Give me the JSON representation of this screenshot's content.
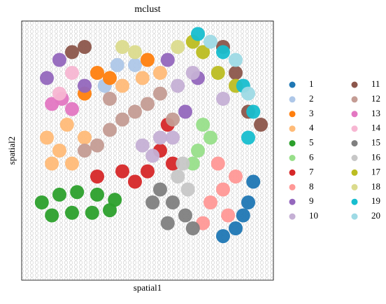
{
  "chart_data": {
    "type": "scatter",
    "title": "mclust",
    "x_label": "spatial1",
    "y_label": "spatial2",
    "xlim": [
      0,
      100
    ],
    "ylim": [
      0,
      100
    ],
    "legend": "right",
    "series": [
      {
        "name": "1",
        "color": "#1f77b4",
        "x": [
          85,
          88,
          90,
          92,
          80
        ],
        "y": [
          20,
          25,
          30,
          38,
          17
        ]
      },
      {
        "name": "2",
        "color": "#aec7e8",
        "x": [
          38,
          45,
          33
        ],
        "y": [
          83,
          83,
          75
        ]
      },
      {
        "name": "3",
        "color": "#ff7f0e",
        "x": [
          25,
          30,
          35,
          50
        ],
        "y": [
          72,
          80,
          78,
          85
        ]
      },
      {
        "name": "4",
        "color": "#ffbb78",
        "x": [
          10,
          15,
          20,
          12,
          25,
          18,
          40,
          48,
          55
        ],
        "y": [
          55,
          50,
          45,
          45,
          55,
          60,
          75,
          78,
          80
        ]
      },
      {
        "name": "5",
        "color": "#2ca02c",
        "x": [
          8,
          15,
          22,
          30,
          37,
          12,
          20,
          28,
          35
        ],
        "y": [
          30,
          33,
          34,
          33,
          31,
          25,
          26,
          26,
          27
        ]
      },
      {
        "name": "6",
        "color": "#98df8a",
        "x": [
          70,
          75,
          72,
          68
        ],
        "y": [
          50,
          55,
          60,
          45
        ]
      },
      {
        "name": "7",
        "color": "#d62728",
        "x": [
          30,
          40,
          50,
          55,
          58,
          60,
          45
        ],
        "y": [
          40,
          42,
          42,
          50,
          60,
          45,
          38
        ]
      },
      {
        "name": "8",
        "color": "#ff9896",
        "x": [
          75,
          80,
          85,
          78,
          72,
          82
        ],
        "y": [
          30,
          35,
          40,
          45,
          22,
          25
        ]
      },
      {
        "name": "9",
        "color": "#9467bd",
        "x": [
          10,
          15,
          65,
          70,
          58,
          25
        ],
        "y": [
          78,
          85,
          65,
          78,
          85,
          75
        ]
      },
      {
        "name": "10",
        "color": "#c5b0d5",
        "x": [
          55,
          52,
          60,
          48,
          62,
          68,
          80
        ],
        "y": [
          55,
          48,
          55,
          52,
          75,
          80,
          70
        ]
      },
      {
        "name": "11",
        "color": "#8c564b",
        "x": [
          20,
          25,
          80,
          85,
          95,
          90
        ],
        "y": [
          88,
          90,
          90,
          80,
          60,
          65
        ]
      },
      {
        "name": "12",
        "color": "#c49c94",
        "x": [
          25,
          30,
          35,
          40,
          45,
          50,
          55,
          35,
          60
        ],
        "y": [
          50,
          52,
          58,
          62,
          65,
          68,
          72,
          70,
          62
        ]
      },
      {
        "name": "13",
        "color": "#e377c2",
        "x": [
          12,
          16,
          20
        ],
        "y": [
          68,
          70,
          66
        ]
      },
      {
        "name": "14",
        "color": "#f7b6d2",
        "x": [
          15,
          20
        ],
        "y": [
          72,
          80
        ]
      },
      {
        "name": "15",
        "color": "#7f7f7f",
        "x": [
          52,
          60,
          65,
          68,
          58,
          55
        ],
        "y": [
          30,
          30,
          25,
          20,
          22,
          35
        ]
      },
      {
        "name": "16",
        "color": "#c7c7c7",
        "x": [
          62,
          66,
          64
        ],
        "y": [
          40,
          35,
          45
        ]
      },
      {
        "name": "17",
        "color": "#bcbd22",
        "x": [
          68,
          72,
          78,
          85
        ],
        "y": [
          92,
          88,
          80,
          75
        ]
      },
      {
        "name": "18",
        "color": "#dbdb8d",
        "x": [
          40,
          45,
          62
        ],
        "y": [
          90,
          88,
          90
        ]
      },
      {
        "name": "19",
        "color": "#17becf",
        "x": [
          70,
          80,
          88,
          92,
          90
        ],
        "y": [
          95,
          88,
          75,
          65,
          55
        ]
      },
      {
        "name": "20",
        "color": "#9edae5",
        "x": [
          75,
          85,
          90
        ],
        "y": [
          92,
          85,
          72
        ]
      }
    ]
  }
}
